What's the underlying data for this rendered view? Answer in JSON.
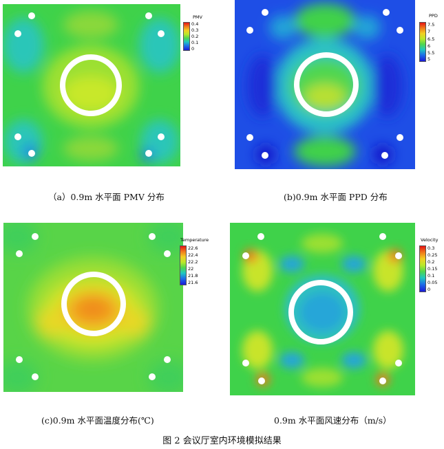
{
  "figure_caption": "图 2  会议厅室内环境模拟结果",
  "panels": [
    {
      "caption": "（a）0.9m 水平面 PMV 分布",
      "legend_title": "PMV",
      "ticks": [
        "0.4",
        "0.3",
        "0.2",
        "0.1",
        "0"
      ]
    },
    {
      "caption": "(b)0.9m 水平面 PPD 分布",
      "legend_title": "PPD",
      "ticks": [
        "7.5",
        "7",
        "6.5",
        "6",
        "5.5",
        "5"
      ]
    },
    {
      "caption": "(c)0.9m 水平面温度分布(℃)",
      "legend_title": "Temperature",
      "ticks": [
        "22.6",
        "22.4",
        "22.2",
        "22",
        "21.8",
        "21.6"
      ]
    },
    {
      "caption": "0.9m 水平面风速分布（m/s）",
      "legend_title": "Velocity",
      "ticks": [
        "0.3",
        "0.25",
        "0.2",
        "0.15",
        "0.1",
        "0.05",
        "0"
      ]
    }
  ],
  "colors": {
    "scale_high": "#e61414",
    "scale_mid": "#4fd64f",
    "scale_low": "#1a1ad8"
  }
}
